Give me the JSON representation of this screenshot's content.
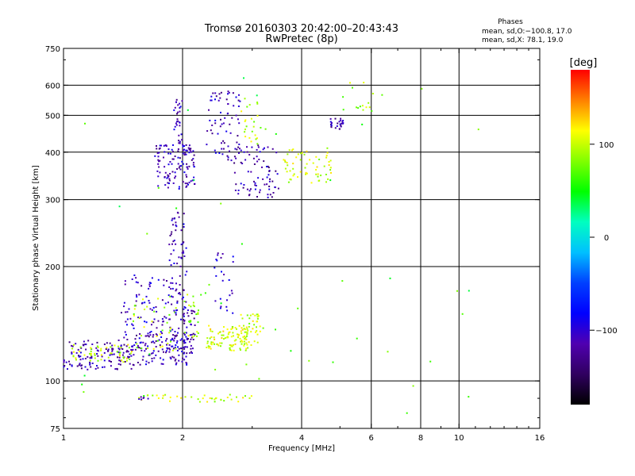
{
  "chart_data": {
    "type": "scatter",
    "title": "Tromsø 20160303 20:42:00–20:43:43",
    "subtitle": "RwPretec (8p)",
    "xlabel": "Frequency [MHz]",
    "ylabel": "Stationary phase Virtual Height [km]",
    "x_scale": "log",
    "y_scale": "log",
    "xlim": [
      1,
      16
    ],
    "ylim": [
      75,
      750
    ],
    "x_ticks": [
      1,
      2,
      4,
      6,
      8,
      10,
      16
    ],
    "x_tick_labels": [
      "1",
      "2",
      "4",
      "6",
      "8",
      "10",
      "16"
    ],
    "y_ticks": [
      75,
      100,
      200,
      300,
      400,
      500,
      600,
      750
    ],
    "y_tick_labels": [
      "75",
      "100",
      "200",
      "300",
      "400",
      "500",
      "600",
      "750"
    ],
    "x_grid": [
      2,
      4,
      6,
      8,
      10
    ],
    "y_grid": [
      100,
      200,
      300,
      400,
      500,
      600
    ],
    "grid": true,
    "legend": {
      "title": "Phases",
      "lines": [
        "mean, sd,O:−100.8, 17.0",
        "mean, sd,X:  78.1, 19.0"
      ],
      "placement": "top-right"
    },
    "colorbar": {
      "label": "[deg]",
      "tick_values": [
        100,
        0,
        -100
      ],
      "tick_labels": [
        "100",
        "0",
        "−100"
      ],
      "range": [
        -180,
        180
      ],
      "colors_top_to_bottom": [
        "#ff0000",
        "#ff8000",
        "#ffff00",
        "#80ff00",
        "#00ff00",
        "#00ffc0",
        "#00c0ff",
        "#0040ff",
        "#0000ff",
        "#5000b0",
        "#300060",
        "#000000"
      ]
    },
    "clusters": [
      {
        "f": [
          1.0,
          1.5
        ],
        "h": [
          107,
          128
        ],
        "phase": -115,
        "n": 130
      },
      {
        "f": [
          1.05,
          1.5
        ],
        "h": [
          112,
          125
        ],
        "phase": 100,
        "n": 50
      },
      {
        "f": [
          1.5,
          2.1
        ],
        "h": [
          110,
          135
        ],
        "phase": -110,
        "n": 110
      },
      {
        "f": [
          1.4,
          1.9
        ],
        "h": [
          118,
          190
        ],
        "phase": -105,
        "n": 90
      },
      {
        "f": [
          1.5,
          1.95
        ],
        "h": [
          120,
          170
        ],
        "phase": 95,
        "n": 40
      },
      {
        "f": [
          1.85,
          2.05
        ],
        "h": [
          120,
          280
        ],
        "phase": -110,
        "n": 90
      },
      {
        "f": [
          2.0,
          2.15
        ],
        "h": [
          118,
          155
        ],
        "phase": -115,
        "n": 45
      },
      {
        "f": [
          2.0,
          2.2
        ],
        "h": [
          130,
          170
        ],
        "phase": 90,
        "n": 25
      },
      {
        "f": [
          2.3,
          3.0
        ],
        "h": [
          120,
          140
        ],
        "phase": 105,
        "n": 100
      },
      {
        "f": [
          2.8,
          3.2
        ],
        "h": [
          125,
          150
        ],
        "phase": 100,
        "n": 40
      },
      {
        "f": [
          2.4,
          2.7
        ],
        "h": [
          150,
          220
        ],
        "phase": -105,
        "n": 25
      },
      {
        "f": [
          1.7,
          2.15
        ],
        "h": [
          320,
          420
        ],
        "phase": -110,
        "n": 120
      },
      {
        "f": [
          1.9,
          2.0
        ],
        "h": [
          420,
          560
        ],
        "phase": -110,
        "n": 30
      },
      {
        "f": [
          2.3,
          2.8
        ],
        "h": [
          380,
          580
        ],
        "phase": -110,
        "n": 70
      },
      {
        "f": [
          2.7,
          3.5
        ],
        "h": [
          300,
          420
        ],
        "phase": -115,
        "n": 80
      },
      {
        "f": [
          2.8,
          3.3
        ],
        "h": [
          420,
          560
        ],
        "phase": 95,
        "n": 25
      },
      {
        "f": [
          3.6,
          4.8
        ],
        "h": [
          330,
          410
        ],
        "phase": 100,
        "n": 60
      },
      {
        "f": [
          4.7,
          5.1
        ],
        "h": [
          460,
          490
        ],
        "phase": -115,
        "n": 25
      },
      {
        "f": [
          5.0,
          6.5
        ],
        "h": [
          500,
          610
        ],
        "phase": 90,
        "n": 15
      },
      {
        "f": [
          1.5,
          3.0
        ],
        "h": [
          88,
          92
        ],
        "phase": 100,
        "n": 40
      },
      {
        "f": [
          1.55,
          1.65
        ],
        "h": [
          89,
          91
        ],
        "phase": -110,
        "n": 6
      },
      {
        "f": [
          1.0,
          12.0
        ],
        "h": [
          80,
          650
        ],
        "phase": 60,
        "n": 45
      }
    ]
  }
}
